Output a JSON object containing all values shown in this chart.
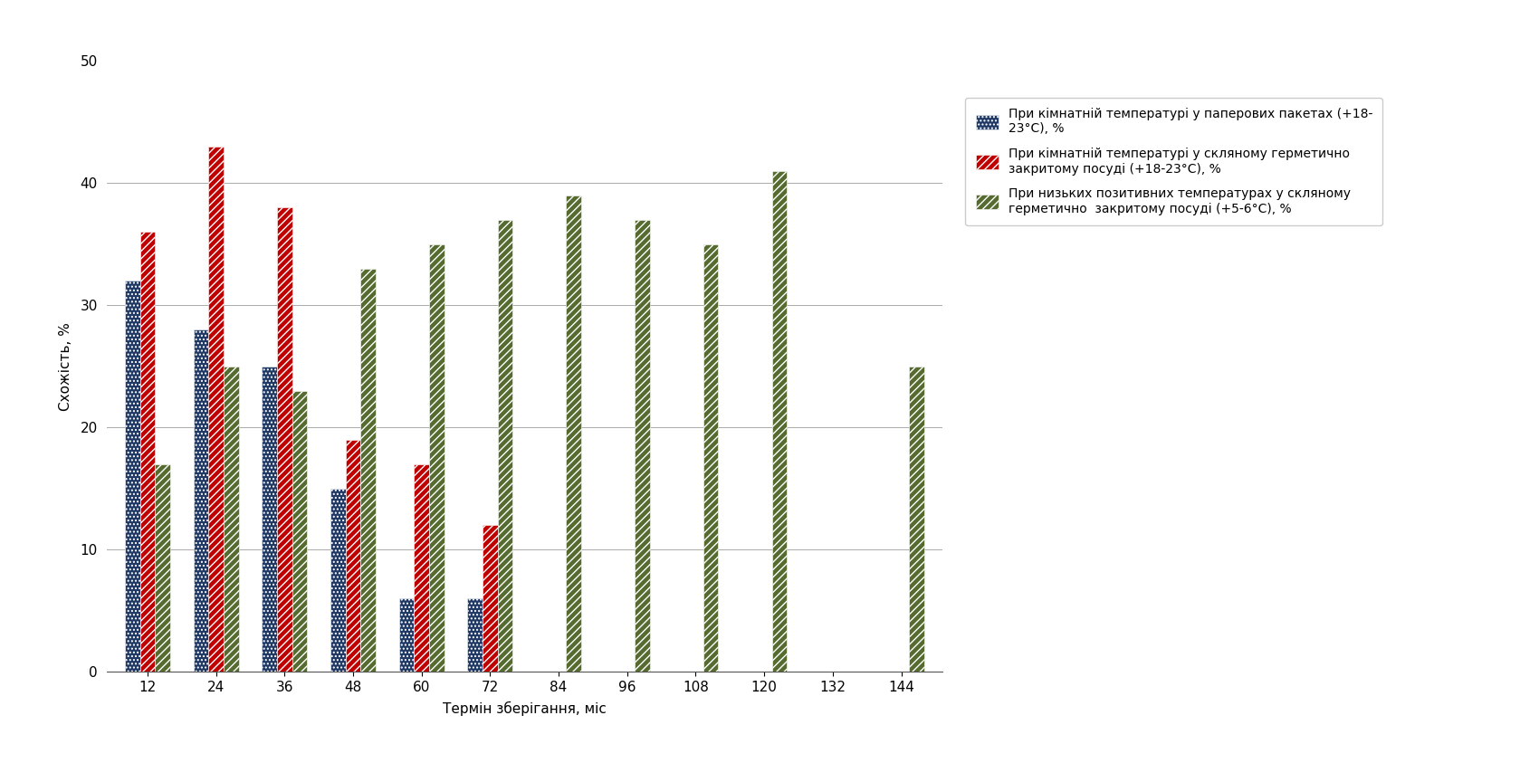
{
  "categories": [
    12,
    24,
    36,
    48,
    60,
    72,
    84,
    96,
    108,
    120,
    132,
    144
  ],
  "series1_blue": [
    32,
    28,
    25,
    15,
    6,
    6,
    0,
    0,
    0,
    0,
    0,
    0
  ],
  "series2_red": [
    36,
    43,
    38,
    19,
    17,
    12,
    0,
    0,
    0,
    0,
    0,
    0
  ],
  "series3_green": [
    17,
    25,
    23,
    33,
    35,
    37,
    39,
    37,
    35,
    41,
    0,
    25
  ],
  "xlabel": "Термін зберігання, міс",
  "ylabel": "Схожість, %",
  "ylim": [
    0,
    50
  ],
  "yticks": [
    0,
    10,
    20,
    30,
    40,
    50
  ],
  "color_blue": "#1f3864",
  "color_red": "#c00000",
  "color_green": "#556b2f",
  "legend1": "При кімнатній температурі у паперових пакетах (+18-\n23°C), %",
  "legend2": "При кімнатній температурі у скляному герметично\nзакритому посуді (+18-23°C), %",
  "legend3": "При низьких позитивних температурах у скляному\nгерметично  закритому посуді (+5-6°C), %",
  "bar_width": 0.22,
  "figsize": [
    16.79,
    8.43
  ],
  "dpi": 100
}
